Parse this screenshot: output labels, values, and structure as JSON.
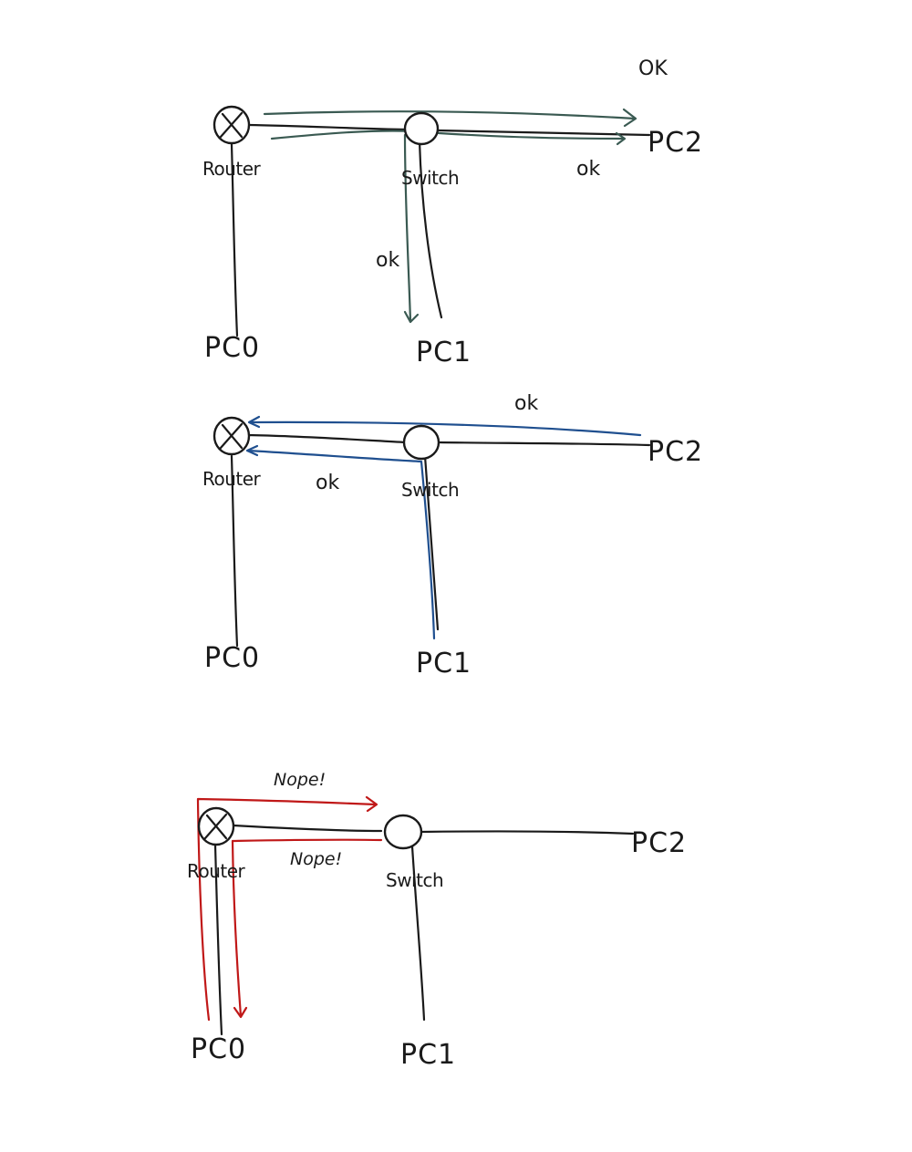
{
  "colors": {
    "ink": "#1a1a1a",
    "ok_green": "#3a5a52",
    "ok_blue": "#1f4f8f",
    "nope_red": "#c01818"
  },
  "panels": [
    {
      "id": "panel-1",
      "labels": {
        "router": "Router",
        "switch": "Switch",
        "pc0": "PC0",
        "pc1": "PC1",
        "pc2": "PC2"
      },
      "annotations": {
        "top": "OK",
        "to_pc2": "ok",
        "to_pc1": "ok"
      }
    },
    {
      "id": "panel-2",
      "labels": {
        "router": "Router",
        "switch": "Switch",
        "pc0": "PC0",
        "pc1": "PC1",
        "pc2": "PC2"
      },
      "annotations": {
        "from_pc2": "ok",
        "from_pc1": "ok"
      }
    },
    {
      "id": "panel-3",
      "labels": {
        "router": "Router",
        "switch": "Switch",
        "pc0": "PC0",
        "pc1": "PC1",
        "pc2": "PC2"
      },
      "annotations": {
        "outbound": "Nope!",
        "inbound": "Nope!"
      }
    }
  ]
}
